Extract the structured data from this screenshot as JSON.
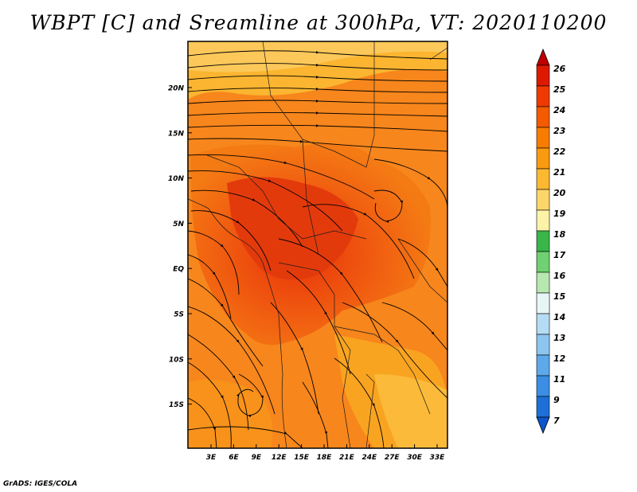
{
  "title": "WBPT [C] and Sreamline at 300hPa, VT: 2020110200",
  "credit": "GrADS: IGES/COLA",
  "map": {
    "lat_labels": [
      "20N",
      "15N",
      "10N",
      "5N",
      "EQ",
      "5S",
      "10S",
      "15S"
    ],
    "lon_labels": [
      "3E",
      "6E",
      "9E",
      "12E",
      "15E",
      "18E",
      "21E",
      "24E",
      "27E",
      "30E",
      "33E"
    ],
    "field": "wet-bulb potential temperature (shaded) with 300hPa streamlines"
  },
  "colorbar": {
    "labels": [
      "26",
      "25",
      "24",
      "23",
      "22",
      "21",
      "20",
      "19",
      "18",
      "17",
      "16",
      "15",
      "14",
      "13",
      "12",
      "11",
      "9",
      "7"
    ],
    "colors": [
      "#c00000",
      "#dd1a00",
      "#ee3a00",
      "#f45a00",
      "#f77c00",
      "#f99b10",
      "#fbb830",
      "#fcd668",
      "#fdf3a8",
      "#39b54a",
      "#6fd172",
      "#b6e8b0",
      "#e6f6f6",
      "#b5dcf4",
      "#8cc6f0",
      "#5ea9ea",
      "#3b8ee3",
      "#1e6fd8",
      "#0e55cc"
    ],
    "top_color": "#c00000",
    "bottom_color": "#0e55cc"
  }
}
